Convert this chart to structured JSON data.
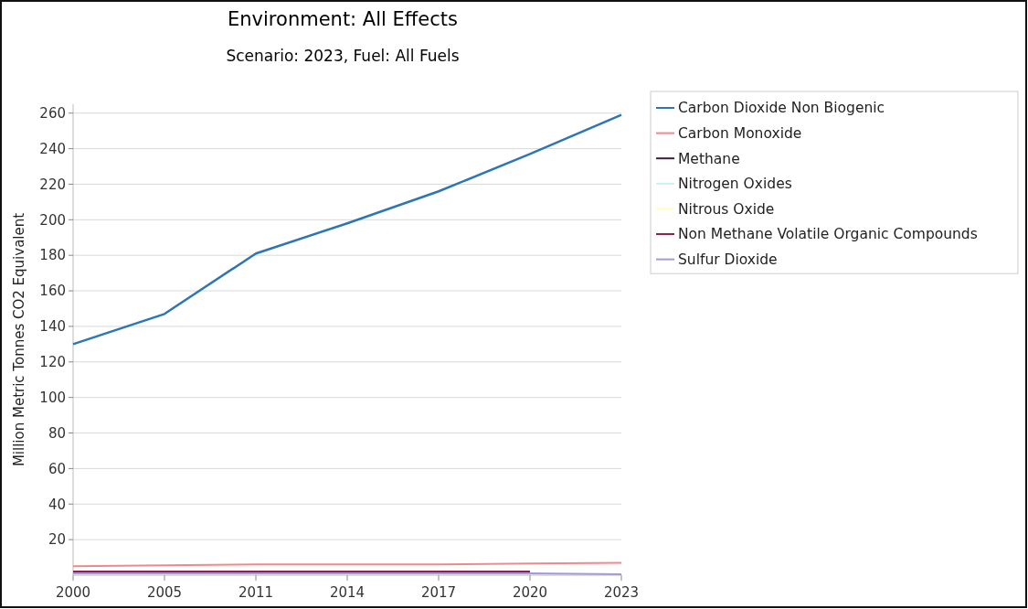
{
  "chart_data": {
    "type": "line",
    "title": "Environment: All Effects",
    "subtitle": "Scenario: 2023, Fuel: All Fuels",
    "ylabel": "Million Metric Tonnes CO2 Equivalent",
    "categories": [
      "2000",
      "2005",
      "2011",
      "2014",
      "2017",
      "2020",
      "2023"
    ],
    "ylim": [
      0,
      265
    ],
    "yticks": [
      20,
      40,
      60,
      80,
      100,
      120,
      140,
      160,
      180,
      200,
      220,
      240,
      260
    ],
    "grid": "y",
    "legend": "right",
    "line_style": "solid",
    "marker": "none",
    "series": [
      {
        "name": "Carbon Dioxide Non Biogenic",
        "color": "#2e75b6",
        "values": [
          130,
          147,
          181,
          198,
          216,
          237,
          259
        ]
      },
      {
        "name": "Carbon Monoxide",
        "color": "#f08a8a",
        "values": [
          5,
          5.5,
          6,
          6,
          6,
          6.5,
          7
        ]
      },
      {
        "name": "Methane",
        "color": "#3c1a40",
        "values": [
          null,
          null,
          null,
          null,
          null,
          null,
          null
        ]
      },
      {
        "name": "Nitrogen Oxides",
        "color": "#c8f0f8",
        "values": [
          null,
          null,
          null,
          null,
          null,
          null,
          null
        ]
      },
      {
        "name": "Nitrous Oxide",
        "color": "#ffffc0",
        "values": [
          null,
          null,
          null,
          null,
          null,
          null,
          null
        ]
      },
      {
        "name": "Non Methane Volatile Organic Compounds",
        "color": "#8b2252",
        "values": [
          2,
          2,
          2,
          2,
          2,
          2,
          null
        ]
      },
      {
        "name": "Sulfur Dioxide",
        "color": "#a898d8",
        "values": [
          1,
          1,
          1,
          1,
          1,
          1,
          0.5
        ]
      }
    ]
  }
}
